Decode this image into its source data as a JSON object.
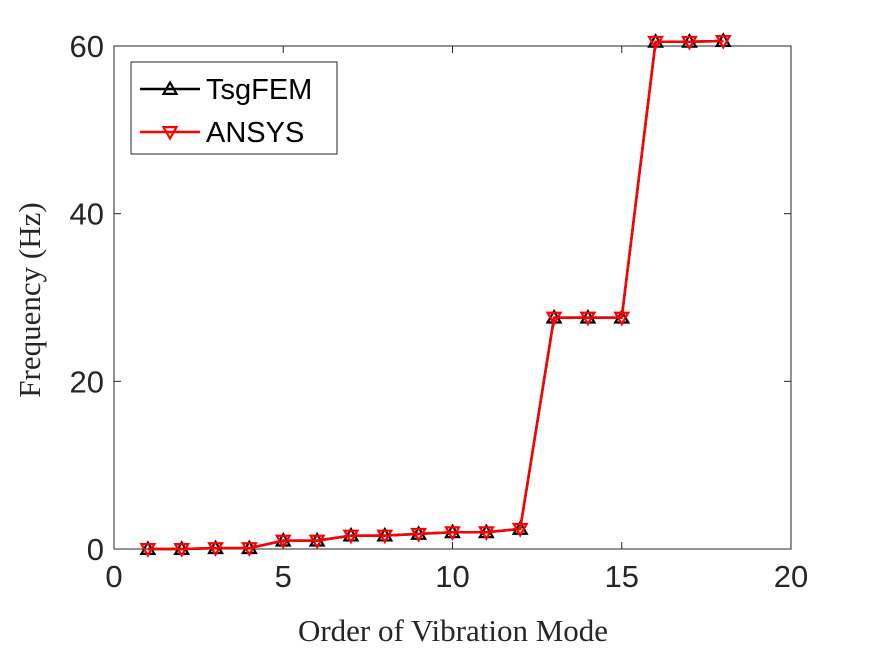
{
  "chart_data": {
    "type": "line",
    "title": "",
    "xlabel": "Order of Vibration Mode",
    "ylabel": "Frequency (Hz)",
    "xlim": [
      0,
      20
    ],
    "ylim": [
      0,
      60
    ],
    "xticks": [
      0,
      5,
      10,
      15,
      20
    ],
    "yticks": [
      0,
      20,
      40,
      60
    ],
    "grid": false,
    "legend_position": "top-left",
    "x": [
      1,
      2,
      3,
      4,
      5,
      6,
      7,
      8,
      9,
      10,
      11,
      12,
      13,
      14,
      15,
      16,
      17,
      18
    ],
    "series": [
      {
        "name": "TsgFEM",
        "color": "#000000",
        "marker": "triangle-up",
        "values": [
          0.0,
          0.0,
          0.1,
          0.1,
          1.0,
          1.0,
          1.6,
          1.6,
          1.8,
          2.0,
          2.0,
          2.4,
          27.6,
          27.6,
          27.6,
          60.5,
          60.5,
          60.6
        ]
      },
      {
        "name": "ANSYS",
        "color": "#ff0000",
        "marker": "triangle-down",
        "values": [
          0.0,
          0.0,
          0.1,
          0.1,
          1.0,
          1.0,
          1.6,
          1.6,
          1.8,
          2.0,
          2.0,
          2.4,
          27.6,
          27.6,
          27.6,
          60.5,
          60.5,
          60.6
        ]
      }
    ]
  }
}
